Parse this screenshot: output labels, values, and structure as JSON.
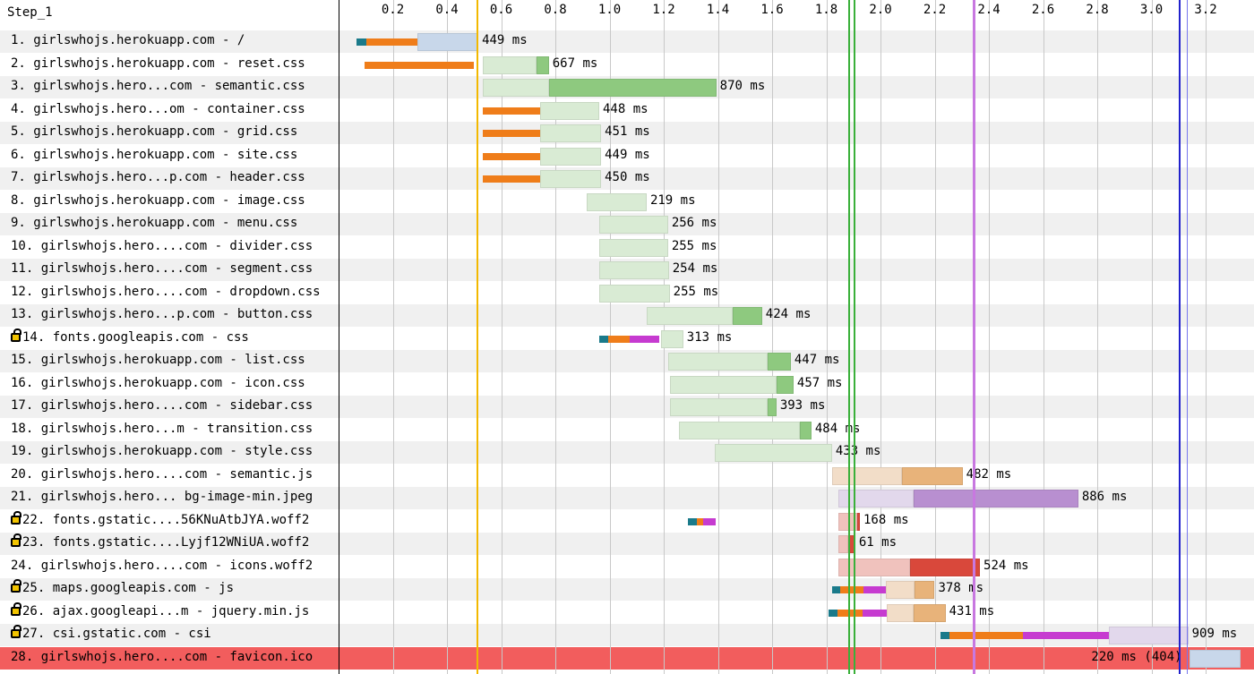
{
  "title": "Step_1",
  "axis": {
    "unit": "s",
    "ticks": [
      "0.2",
      "0.4",
      "0.6",
      "0.8",
      "1.0",
      "1.2",
      "1.4",
      "1.6",
      "1.8",
      "2.0",
      "2.2",
      "2.4",
      "2.6",
      "2.8",
      "3.0",
      "3.2"
    ]
  },
  "colors": {
    "dns": "#1a7a8a",
    "connect": "#ef7d1a",
    "ssl": "#c63bd0",
    "html_wait": "#c8d7ea",
    "html_recv": "#9ab6d8",
    "css_wait": "#d9ebd4",
    "css_recv": "#8ec97f",
    "js_wait": "#f2ddc8",
    "js_recv": "#e8b37a",
    "img_wait": "#e2d8ec",
    "img_recv": "#b88fd0",
    "font_wait": "#f0c2bd",
    "font_recv": "#d9483b",
    "start_render": "#f2b800",
    "dom_content": "#3ab03a",
    "on_load": "#c878e0",
    "doc_complete": "#2222cc",
    "error_row": "#f25d5d",
    "alt_row": "#f0f0f0"
  },
  "markers": [
    {
      "name": "start-render-line",
      "time": 0.51,
      "color": "#f2b800",
      "width": 2
    },
    {
      "name": "dom-content-line-a",
      "time": 1.88,
      "color": "#3ab03a",
      "width": 2
    },
    {
      "name": "dom-content-line-b",
      "time": 1.9,
      "color": "#3ab03a",
      "width": 2
    },
    {
      "name": "on-load-line",
      "time": 2.34,
      "color": "#c878e0",
      "width": 3
    },
    {
      "name": "doc-complete-line",
      "time": 3.1,
      "color": "#2222cc",
      "width": 2
    },
    {
      "name": "doc-complete-line-b",
      "time": 3.13,
      "color": "#7777ee",
      "width": 1
    }
  ],
  "requests": [
    {
      "num": "1",
      "label": "1. girlswhojs.herokuapp.com - /",
      "secure": false,
      "timing": "449 ms",
      "type": "html",
      "phases": [
        [
          "dns",
          0.067,
          0.102
        ],
        [
          "connect",
          0.102,
          0.291
        ],
        [
          "wait",
          0.291,
          0.516
        ]
      ]
    },
    {
      "num": "2",
      "label": "2. girlswhojs.herokuapp.com - reset.css",
      "secure": false,
      "timing": "667 ms",
      "type": "css",
      "phases": [
        [
          "connect",
          0.096,
          0.5
        ],
        [
          "wait",
          0.532,
          0.732
        ],
        [
          "recv",
          0.732,
          0.776
        ]
      ]
    },
    {
      "num": "3",
      "label": "3. girlswhojs.hero...com - semantic.css",
      "secure": false,
      "timing": "870 ms",
      "type": "css",
      "phases": [
        [
          "wait",
          0.532,
          0.776
        ],
        [
          "recv",
          0.776,
          1.394
        ]
      ]
    },
    {
      "num": "4",
      "label": "4. girlswhojs.hero...om - container.css",
      "secure": false,
      "timing": "448 ms",
      "type": "css",
      "phases": [
        [
          "connect",
          0.532,
          0.744
        ],
        [
          "wait",
          0.744,
          0.962
        ]
      ]
    },
    {
      "num": "5",
      "label": "5. girlswhojs.herokuapp.com - grid.css",
      "secure": false,
      "timing": "451 ms",
      "type": "css",
      "phases": [
        [
          "connect",
          0.532,
          0.744
        ],
        [
          "wait",
          0.744,
          0.969
        ]
      ]
    },
    {
      "num": "6",
      "label": "6. girlswhojs.herokuapp.com - site.css",
      "secure": false,
      "timing": "449 ms",
      "type": "css",
      "phases": [
        [
          "connect",
          0.532,
          0.744
        ],
        [
          "wait",
          0.744,
          0.969
        ]
      ]
    },
    {
      "num": "7",
      "label": "7. girlswhojs.hero...p.com - header.css",
      "secure": false,
      "timing": "450 ms",
      "type": "css",
      "phases": [
        [
          "connect",
          0.532,
          0.744
        ],
        [
          "wait",
          0.744,
          0.969
        ]
      ]
    },
    {
      "num": "8",
      "label": "8. girlswhojs.herokuapp.com - image.css",
      "secure": false,
      "timing": "219 ms",
      "type": "css",
      "phases": [
        [
          "wait",
          0.916,
          1.137
        ]
      ]
    },
    {
      "num": "9",
      "label": "9. girlswhojs.herokuapp.com - menu.css",
      "secure": false,
      "timing": "256 ms",
      "type": "css",
      "phases": [
        [
          "wait",
          0.962,
          1.216
        ]
      ]
    },
    {
      "num": "10",
      "label": "10. girlswhojs.hero....com - divider.css",
      "secure": false,
      "timing": "255 ms",
      "type": "css",
      "phases": [
        [
          "wait",
          0.962,
          1.216
        ]
      ]
    },
    {
      "num": "11",
      "label": "11. girlswhojs.hero....com - segment.css",
      "secure": false,
      "timing": "254 ms",
      "type": "css",
      "phases": [
        [
          "wait",
          0.962,
          1.219
        ]
      ]
    },
    {
      "num": "12",
      "label": "12. girlswhojs.hero....com - dropdown.css",
      "secure": false,
      "timing": "255 ms",
      "type": "css",
      "phases": [
        [
          "wait",
          0.962,
          1.222
        ]
      ]
    },
    {
      "num": "13",
      "label": "13. girlswhojs.hero...p.com - button.css",
      "secure": false,
      "timing": "424 ms",
      "type": "css",
      "phases": [
        [
          "wait",
          1.137,
          1.454
        ],
        [
          "recv",
          1.454,
          1.563
        ]
      ]
    },
    {
      "num": "14",
      "label": "14. fonts.googleapis.com - css",
      "secure": true,
      "timing": "313 ms",
      "type": "css",
      "phases": [
        [
          "dns",
          0.962,
          0.995
        ],
        [
          "connect",
          0.995,
          1.074
        ],
        [
          "ssl",
          1.074,
          1.184
        ],
        [
          "wait",
          1.189,
          1.272
        ]
      ]
    },
    {
      "num": "15",
      "label": "15. girlswhojs.herokuapp.com - list.css",
      "secure": false,
      "timing": "447 ms",
      "type": "css",
      "phases": [
        [
          "wait",
          1.216,
          1.583
        ],
        [
          "recv",
          1.583,
          1.669
        ]
      ]
    },
    {
      "num": "16",
      "label": "16. girlswhojs.herokuapp.com - icon.css",
      "secure": false,
      "timing": "457 ms",
      "type": "css",
      "phases": [
        [
          "wait",
          1.222,
          1.616
        ],
        [
          "recv",
          1.616,
          1.679
        ]
      ]
    },
    {
      "num": "17",
      "label": "17. girlswhojs.hero....com - sidebar.css",
      "secure": false,
      "timing": "393 ms",
      "type": "css",
      "phases": [
        [
          "wait",
          1.222,
          1.583
        ],
        [
          "recv",
          1.583,
          1.616
        ]
      ]
    },
    {
      "num": "18",
      "label": "18. girlswhojs.hero...m - transition.css",
      "secure": false,
      "timing": "484 ms",
      "type": "css",
      "phases": [
        [
          "wait",
          1.255,
          1.702
        ],
        [
          "recv",
          1.702,
          1.745
        ]
      ]
    },
    {
      "num": "19",
      "label": "19. girlswhojs.herokuapp.com - style.css",
      "secure": false,
      "timing": "433 ms",
      "type": "css",
      "phases": [
        [
          "wait",
          1.388,
          1.821
        ]
      ]
    },
    {
      "num": "20",
      "label": "20. girlswhojs.hero....com - semantic.js",
      "secure": false,
      "timing": "482 ms",
      "type": "js",
      "phases": [
        [
          "wait",
          1.821,
          2.08
        ],
        [
          "recv",
          2.08,
          2.303
        ]
      ]
    },
    {
      "num": "21",
      "label": "21. girlswhojs.hero... bg-image-min.jpeg",
      "secure": false,
      "timing": "886 ms",
      "type": "img",
      "phases": [
        [
          "wait",
          1.844,
          2.123
        ],
        [
          "recv",
          2.123,
          2.73
        ]
      ]
    },
    {
      "num": "22",
      "label": "22. fonts.gstatic....56KNuAtbJYA.woff2",
      "secure": true,
      "timing": "168 ms",
      "type": "font",
      "phases": [
        [
          "dns",
          1.288,
          1.321
        ],
        [
          "connect",
          1.321,
          1.344
        ],
        [
          "ssl",
          1.344,
          1.391
        ],
        [
          "wait",
          1.844,
          1.914
        ],
        [
          "recv",
          1.914,
          1.924
        ]
      ]
    },
    {
      "num": "23",
      "label": "23. fonts.gstatic....Lyjf12WNiUA.woff2",
      "secure": true,
      "timing": "61 ms",
      "type": "font",
      "phases": [
        [
          "wait",
          1.844,
          1.881
        ],
        [
          "recv",
          1.881,
          1.907
        ]
      ]
    },
    {
      "num": "24",
      "label": "24. girlswhojs.hero....com - icons.woff2",
      "secure": false,
      "timing": "524 ms",
      "type": "font",
      "phases": [
        [
          "wait",
          1.844,
          2.109
        ],
        [
          "recv",
          2.109,
          2.367
        ]
      ]
    },
    {
      "num": "25",
      "label": "25. maps.googleapis.com - js",
      "secure": true,
      "timing": "378 ms",
      "type": "js",
      "phases": [
        [
          "dns",
          1.821,
          1.851
        ],
        [
          "connect",
          1.851,
          1.937
        ],
        [
          "ssl",
          1.937,
          2.02
        ],
        [
          "wait",
          2.02,
          2.126
        ],
        [
          "recv",
          2.126,
          2.2
        ]
      ]
    },
    {
      "num": "26",
      "label": "26. ajax.googleapi...m - jquery.min.js",
      "secure": true,
      "timing": "431 ms",
      "type": "js",
      "phases": [
        [
          "dns",
          1.808,
          1.841
        ],
        [
          "connect",
          1.841,
          1.934
        ],
        [
          "ssl",
          1.934,
          2.023
        ],
        [
          "wait",
          2.023,
          2.123
        ],
        [
          "recv",
          2.123,
          2.24
        ]
      ]
    },
    {
      "num": "27",
      "label": "27. csi.gstatic.com - csi",
      "secure": true,
      "timing": "909 ms",
      "type": "img",
      "phases": [
        [
          "dns",
          2.22,
          2.253
        ],
        [
          "connect",
          2.253,
          2.525
        ],
        [
          "ssl",
          2.525,
          2.843
        ],
        [
          "wait",
          2.843,
          3.136
        ]
      ]
    },
    {
      "num": "28",
      "label": "28. girlswhojs.hero....com - favicon.ico",
      "secure": false,
      "timing": "220 ms (404)",
      "type": "html",
      "error": true,
      "phases": [
        [
          "wait",
          3.139,
          3.33
        ]
      ]
    }
  ]
}
